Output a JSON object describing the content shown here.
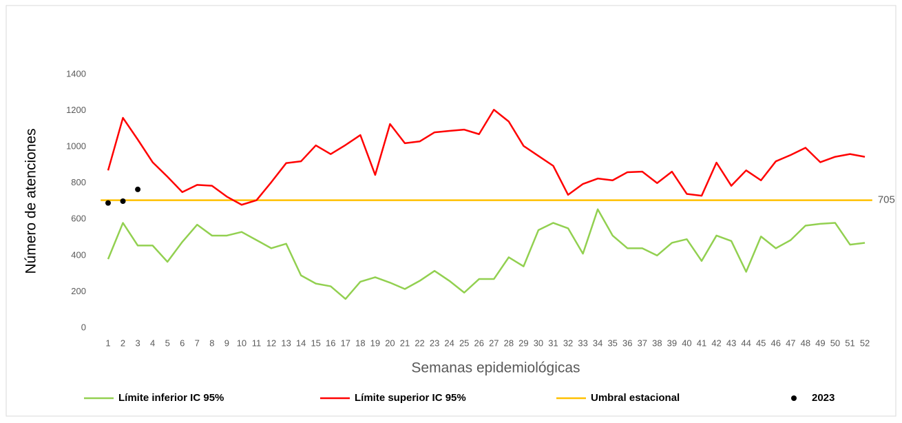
{
  "chart_data": {
    "type": "line",
    "x_label": "Semanas epidemiológicas",
    "y_label": "Número de atenciones",
    "categories": [
      1,
      2,
      3,
      4,
      5,
      6,
      7,
      8,
      9,
      10,
      11,
      12,
      13,
      14,
      15,
      16,
      17,
      18,
      19,
      20,
      21,
      22,
      23,
      24,
      25,
      26,
      27,
      28,
      29,
      30,
      31,
      32,
      33,
      34,
      35,
      36,
      37,
      38,
      39,
      40,
      41,
      42,
      43,
      44,
      45,
      46,
      47,
      48,
      49,
      50,
      51,
      52
    ],
    "series": [
      {
        "name": "Límite inferior IC 95%",
        "color": "#92d050",
        "style": "line",
        "values": [
          380,
          580,
          455,
          455,
          365,
          475,
          570,
          510,
          510,
          530,
          485,
          440,
          465,
          290,
          245,
          230,
          160,
          255,
          280,
          250,
          215,
          260,
          315,
          260,
          195,
          270,
          270,
          390,
          340,
          540,
          580,
          550,
          410,
          655,
          510,
          440,
          440,
          400,
          470,
          490,
          370,
          510,
          480,
          310,
          505,
          440,
          485,
          565,
          575,
          580,
          460,
          470
        ]
      },
      {
        "name": "Límite superior IC 95%",
        "color": "#ff0000",
        "style": "line",
        "values": [
          870,
          1160,
          1040,
          915,
          835,
          750,
          790,
          785,
          725,
          680,
          705,
          805,
          910,
          920,
          1008,
          960,
          1010,
          1065,
          845,
          1126,
          1020,
          1030,
          1080,
          1088,
          1095,
          1070,
          1205,
          1140,
          1005,
          950,
          895,
          735,
          795,
          825,
          815,
          860,
          863,
          800,
          863,
          740,
          730,
          913,
          785,
          870,
          815,
          920,
          955,
          995,
          915,
          945,
          960,
          945
        ]
      },
      {
        "name": "2023",
        "color": "#000000",
        "style": "markers",
        "values": [
          690,
          700,
          765,
          null,
          null,
          null,
          null,
          null,
          null,
          null,
          null,
          null,
          null,
          null,
          null,
          null,
          null,
          null,
          null,
          null,
          null,
          null,
          null,
          null,
          null,
          null,
          null,
          null,
          null,
          null,
          null,
          null,
          null,
          null,
          null,
          null,
          null,
          null,
          null,
          null,
          null,
          null,
          null,
          null,
          null,
          null,
          null,
          null,
          null,
          null,
          null,
          null
        ]
      }
    ],
    "threshold": {
      "name": "Umbral estacional",
      "color": "#ffc000",
      "value": 705
    },
    "ylim": [
      0,
      1400
    ],
    "yticks": [
      0,
      200,
      400,
      600,
      800,
      1000,
      1200,
      1400
    ],
    "grid": false,
    "legend": "bottom"
  }
}
